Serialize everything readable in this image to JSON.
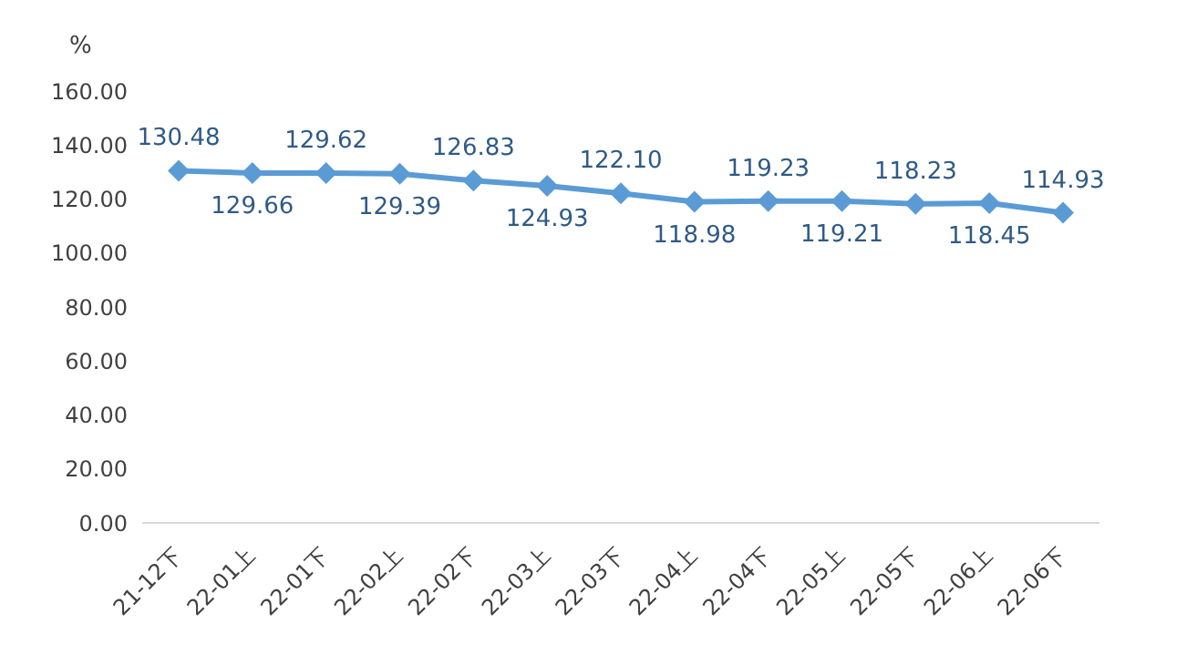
{
  "chart_data": {
    "type": "line",
    "ylabel": "%",
    "categories": [
      "21-12下",
      "22-01上",
      "22-01下",
      "22-02上",
      "22-02下",
      "22-03上",
      "22-03下",
      "22-04上",
      "22-04下",
      "22-05上",
      "22-05下",
      "22-06上",
      "22-06下"
    ],
    "series": [
      {
        "color": "#5b9bd5",
        "values": [
          130.48,
          129.66,
          129.62,
          129.39,
          126.83,
          124.93,
          122.1,
          118.98,
          119.23,
          119.21,
          118.23,
          118.45,
          114.93
        ],
        "value_labels": [
          "130.48",
          "129.66",
          "129.62",
          "129.39",
          "126.83",
          "124.93",
          "122.10",
          "118.98",
          "119.23",
          "119.21",
          "118.23",
          "118.45",
          "114.93"
        ]
      }
    ],
    "ylim": [
      0,
      160
    ],
    "yticks": [
      {
        "value": 0,
        "label": "0.00"
      },
      {
        "value": 20,
        "label": "20.00"
      },
      {
        "value": 40,
        "label": "40.00"
      },
      {
        "value": 60,
        "label": "60.00"
      },
      {
        "value": 80,
        "label": "80.00"
      },
      {
        "value": 100,
        "label": "100.00"
      },
      {
        "value": 120,
        "label": "120.00"
      },
      {
        "value": 140,
        "label": "140.00"
      },
      {
        "value": 160,
        "label": "160.00"
      }
    ],
    "grid": false,
    "legend": false,
    "marker": "diamond",
    "line_style": "solid"
  }
}
